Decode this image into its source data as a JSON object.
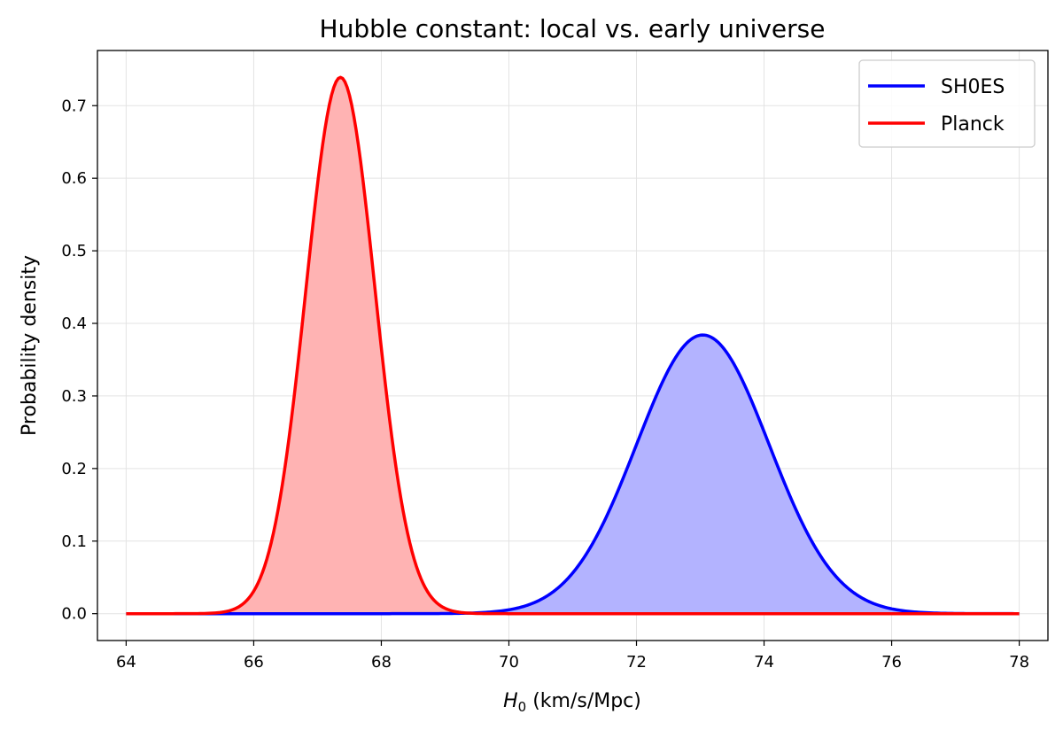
{
  "chart_data": {
    "type": "line",
    "title": "Hubble constant: local vs. early universe",
    "xlabel_main": "H",
    "xlabel_sub": "0",
    "xlabel_rest": " (km/s/Mpc)",
    "ylabel": "Probability density",
    "xlim": [
      63.55,
      78.45
    ],
    "ylim": [
      -0.037,
      0.776
    ],
    "xticks": [
      64,
      66,
      68,
      70,
      72,
      74,
      76,
      78
    ],
    "xtick_labels": [
      "64",
      "66",
      "68",
      "70",
      "72",
      "74",
      "76",
      "78"
    ],
    "yticks": [
      0.0,
      0.1,
      0.2,
      0.3,
      0.4,
      0.5,
      0.6,
      0.7
    ],
    "ytick_labels": [
      "0.0",
      "0.1",
      "0.2",
      "0.3",
      "0.4",
      "0.5",
      "0.6",
      "0.7"
    ],
    "grid": true,
    "legend_position": "top-right",
    "x_range": [
      64,
      78
    ],
    "series": [
      {
        "name": "SH0ES",
        "color": "#0000ff",
        "fill": "#b3b3ff",
        "distribution": "gaussian",
        "mean": 73.04,
        "sigma": 1.04,
        "peak": 0.384
      },
      {
        "name": "Planck",
        "color": "#ff0000",
        "fill": "#ffb3b3",
        "distribution": "gaussian",
        "mean": 67.36,
        "sigma": 0.54,
        "peak": 0.739
      }
    ]
  }
}
